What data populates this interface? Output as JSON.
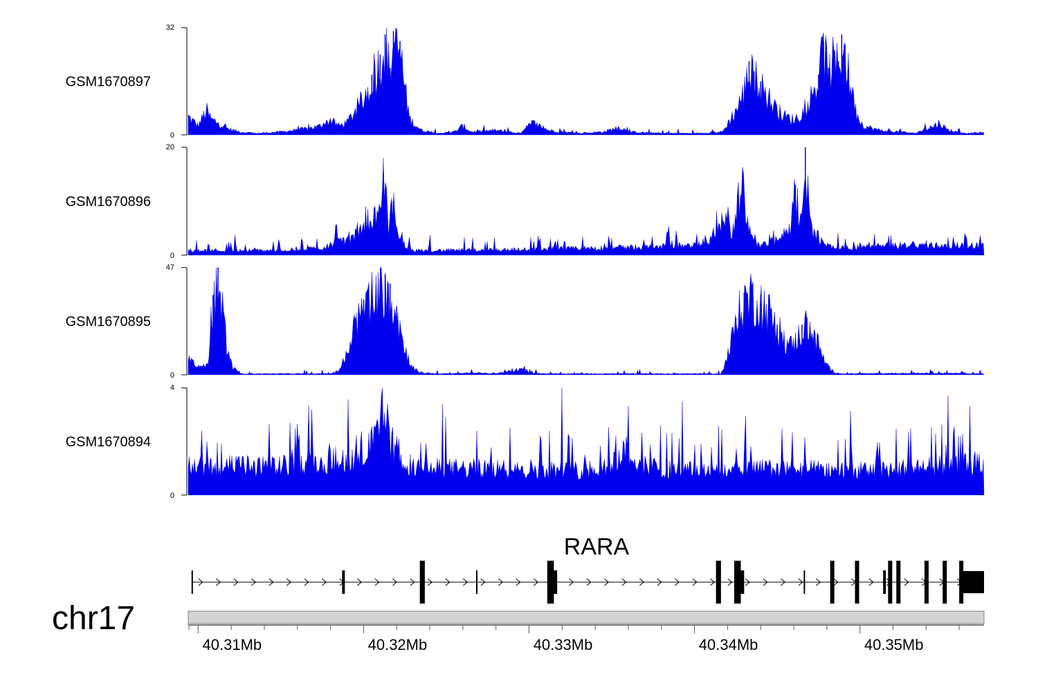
{
  "chart_data": {
    "type": "area",
    "track_color": "#0000ee",
    "x_unit": "Mb",
    "xlim": [
      40.3094,
      40.3575
    ],
    "x_ticks": [
      {
        "value": 40.31,
        "label": "40.31Mb"
      },
      {
        "value": 40.32,
        "label": "40.32Mb"
      },
      {
        "value": 40.33,
        "label": "40.33Mb"
      },
      {
        "value": 40.34,
        "label": "40.34Mb"
      },
      {
        "value": 40.35,
        "label": "40.35Mb"
      }
    ],
    "tracks": [
      {
        "name": "GSM1670897",
        "ylim": [
          0,
          32
        ],
        "ymin_label": "0",
        "ymax_label": "32",
        "noise": 1.2,
        "points": [
          [
            40.3094,
            6
          ],
          [
            40.31,
            3
          ],
          [
            40.3105,
            8
          ],
          [
            40.3108,
            5
          ],
          [
            40.3112,
            4
          ],
          [
            40.3118,
            2
          ],
          [
            40.3125,
            1
          ],
          [
            40.3135,
            0.5
          ],
          [
            40.315,
            1
          ],
          [
            40.3165,
            2
          ],
          [
            40.3175,
            3
          ],
          [
            40.318,
            5
          ],
          [
            40.3185,
            3
          ],
          [
            40.319,
            4
          ],
          [
            40.3195,
            8
          ],
          [
            40.32,
            12
          ],
          [
            40.3205,
            18
          ],
          [
            40.321,
            24
          ],
          [
            40.3213,
            30
          ],
          [
            40.3216,
            20
          ],
          [
            40.3218,
            31
          ],
          [
            40.322,
            27
          ],
          [
            40.3222,
            28
          ],
          [
            40.3225,
            15
          ],
          [
            40.3228,
            5
          ],
          [
            40.3235,
            1.5
          ],
          [
            40.3245,
            0.5
          ],
          [
            40.3255,
            1
          ],
          [
            40.326,
            3
          ],
          [
            40.3265,
            1
          ],
          [
            40.328,
            1.5
          ],
          [
            40.3295,
            0.5
          ],
          [
            40.3302,
            4
          ],
          [
            40.3306,
            3
          ],
          [
            40.3312,
            1.5
          ],
          [
            40.332,
            1
          ],
          [
            40.333,
            0.5
          ],
          [
            40.3345,
            1
          ],
          [
            40.3355,
            2.5
          ],
          [
            40.336,
            1
          ],
          [
            40.338,
            0.5
          ],
          [
            40.34,
            0.5
          ],
          [
            40.3417,
            1
          ],
          [
            40.3425,
            8
          ],
          [
            40.343,
            14
          ],
          [
            40.3433,
            22
          ],
          [
            40.3436,
            19
          ],
          [
            40.344,
            16
          ],
          [
            40.3445,
            12
          ],
          [
            40.345,
            8
          ],
          [
            40.3455,
            6
          ],
          [
            40.346,
            5
          ],
          [
            40.3465,
            7
          ],
          [
            40.347,
            12
          ],
          [
            40.3475,
            18
          ],
          [
            40.3478,
            28
          ],
          [
            40.3481,
            20
          ],
          [
            40.3484,
            24
          ],
          [
            40.3487,
            22
          ],
          [
            40.3489,
            30
          ],
          [
            40.3491,
            27
          ],
          [
            40.3493,
            20
          ],
          [
            40.3497,
            8
          ],
          [
            40.3502,
            3
          ],
          [
            40.3512,
            1.5
          ],
          [
            40.3525,
            1
          ],
          [
            40.3533,
            0.5
          ],
          [
            40.354,
            2
          ],
          [
            40.3545,
            3
          ],
          [
            40.3548,
            4
          ],
          [
            40.3552,
            2
          ],
          [
            40.3558,
            1
          ],
          [
            40.3565,
            0.5
          ],
          [
            40.3575,
            0.8
          ]
        ]
      },
      {
        "name": "GSM1670896",
        "ylim": [
          0,
          20
        ],
        "ymin_label": "0",
        "ymax_label": "20",
        "noise": 2.2,
        "points": [
          [
            40.3094,
            1
          ],
          [
            40.312,
            1
          ],
          [
            40.315,
            1
          ],
          [
            40.3175,
            1.5
          ],
          [
            40.3185,
            3
          ],
          [
            40.3195,
            4
          ],
          [
            40.32,
            6
          ],
          [
            40.3205,
            8
          ],
          [
            40.321,
            7
          ],
          [
            40.3212,
            15
          ],
          [
            40.3215,
            6
          ],
          [
            40.3218,
            10
          ],
          [
            40.3222,
            3
          ],
          [
            40.323,
            1
          ],
          [
            40.326,
            1
          ],
          [
            40.33,
            1.2
          ],
          [
            40.335,
            1.5
          ],
          [
            40.34,
            2
          ],
          [
            40.341,
            3
          ],
          [
            40.3415,
            7
          ],
          [
            40.342,
            8
          ],
          [
            40.3423,
            4
          ],
          [
            40.3426,
            11
          ],
          [
            40.3429,
            14
          ],
          [
            40.3432,
            6
          ],
          [
            40.3436,
            3
          ],
          [
            40.344,
            2
          ],
          [
            40.345,
            3
          ],
          [
            40.3458,
            5
          ],
          [
            40.3461,
            13
          ],
          [
            40.3464,
            6
          ],
          [
            40.3467,
            20
          ],
          [
            40.347,
            6
          ],
          [
            40.3473,
            5
          ],
          [
            40.3478,
            2
          ],
          [
            40.349,
            1.5
          ],
          [
            40.353,
            2
          ],
          [
            40.3575,
            2
          ]
        ]
      },
      {
        "name": "GSM1670895",
        "ylim": [
          0,
          47
        ],
        "ymin_label": "0",
        "ymax_label": "47",
        "noise": 1.5,
        "points": [
          [
            40.3094,
            9
          ],
          [
            40.3098,
            5
          ],
          [
            40.3102,
            3
          ],
          [
            40.3106,
            8
          ],
          [
            40.3109,
            35
          ],
          [
            40.3112,
            47
          ],
          [
            40.3115,
            30
          ],
          [
            40.3118,
            10
          ],
          [
            40.3121,
            3
          ],
          [
            40.3126,
            0.5
          ],
          [
            40.318,
            0.5
          ],
          [
            40.3185,
            2
          ],
          [
            40.319,
            10
          ],
          [
            40.3195,
            25
          ],
          [
            40.32,
            33
          ],
          [
            40.3205,
            38
          ],
          [
            40.321,
            42
          ],
          [
            40.3213,
            44
          ],
          [
            40.3216,
            40
          ],
          [
            40.322,
            30
          ],
          [
            40.3225,
            12
          ],
          [
            40.323,
            3
          ],
          [
            40.3235,
            1
          ],
          [
            40.3245,
            0.5
          ],
          [
            40.3255,
            0.5
          ],
          [
            40.3265,
            1
          ],
          [
            40.328,
            0.5
          ],
          [
            40.329,
            2
          ],
          [
            40.3295,
            3
          ],
          [
            40.33,
            1
          ],
          [
            40.331,
            0.5
          ],
          [
            40.3416,
            0.5
          ],
          [
            40.342,
            8
          ],
          [
            40.3425,
            25
          ],
          [
            40.343,
            36
          ],
          [
            40.3435,
            38
          ],
          [
            40.344,
            35
          ],
          [
            40.3445,
            30
          ],
          [
            40.345,
            22
          ],
          [
            40.3455,
            16
          ],
          [
            40.3458,
            14
          ],
          [
            40.3462,
            17
          ],
          [
            40.3465,
            22
          ],
          [
            40.3468,
            25
          ],
          [
            40.3472,
            20
          ],
          [
            40.3476,
            12
          ],
          [
            40.348,
            4
          ],
          [
            40.3485,
            1
          ],
          [
            40.349,
            0.5
          ],
          [
            40.356,
            0.8
          ],
          [
            40.3575,
            0.5
          ]
        ]
      },
      {
        "name": "GSM1670894",
        "ylim": [
          0,
          4
        ],
        "ymin_label": "0",
        "ymax_label": "4",
        "noise": 1.9,
        "points": [
          [
            40.3094,
            1.2
          ],
          [
            40.315,
            1.2
          ],
          [
            40.318,
            1.4
          ],
          [
            40.3195,
            1.6
          ],
          [
            40.3205,
            2.0
          ],
          [
            40.3212,
            2.6
          ],
          [
            40.322,
            1.8
          ],
          [
            40.323,
            1.1
          ],
          [
            40.33,
            1.1
          ],
          [
            40.333,
            1.0
          ],
          [
            40.335,
            1.3
          ],
          [
            40.336,
            2.0
          ],
          [
            40.3365,
            1.2
          ],
          [
            40.34,
            1.0
          ],
          [
            40.345,
            1.1
          ],
          [
            40.35,
            1.0
          ],
          [
            40.355,
            1.2
          ],
          [
            40.3575,
            1.4
          ]
        ]
      }
    ],
    "gene": {
      "name": "RARA",
      "chromosome": "chr17",
      "start": 40.3096,
      "end": 40.3575,
      "strand": "+",
      "exons": [
        [
          40.3096,
          40.30965,
          "line"
        ],
        [
          40.3187,
          40.31885,
          "thin"
        ],
        [
          40.3234,
          40.3237,
          "thick"
        ],
        [
          40.3268,
          40.3269,
          "line"
        ],
        [
          40.3311,
          40.3315,
          "thick"
        ],
        [
          40.3315,
          40.3317,
          "thin"
        ],
        [
          40.3413,
          40.3416,
          "thick"
        ],
        [
          40.3424,
          40.3428,
          "thick"
        ],
        [
          40.3428,
          40.343,
          "thin"
        ],
        [
          40.3466,
          40.34665,
          "line"
        ],
        [
          40.3482,
          40.3484,
          "thick"
        ],
        [
          40.3497,
          40.3498,
          "thick"
        ],
        [
          40.3514,
          40.3515,
          "thin"
        ],
        [
          40.3517,
          40.3519,
          "thick"
        ],
        [
          40.3522,
          40.3524,
          "thick"
        ],
        [
          40.3539,
          40.3541,
          "thick"
        ],
        [
          40.355,
          40.3552,
          "thick"
        ],
        [
          40.356,
          40.3562,
          "thick"
        ],
        [
          40.3562,
          40.3575,
          "utr"
        ]
      ]
    }
  }
}
